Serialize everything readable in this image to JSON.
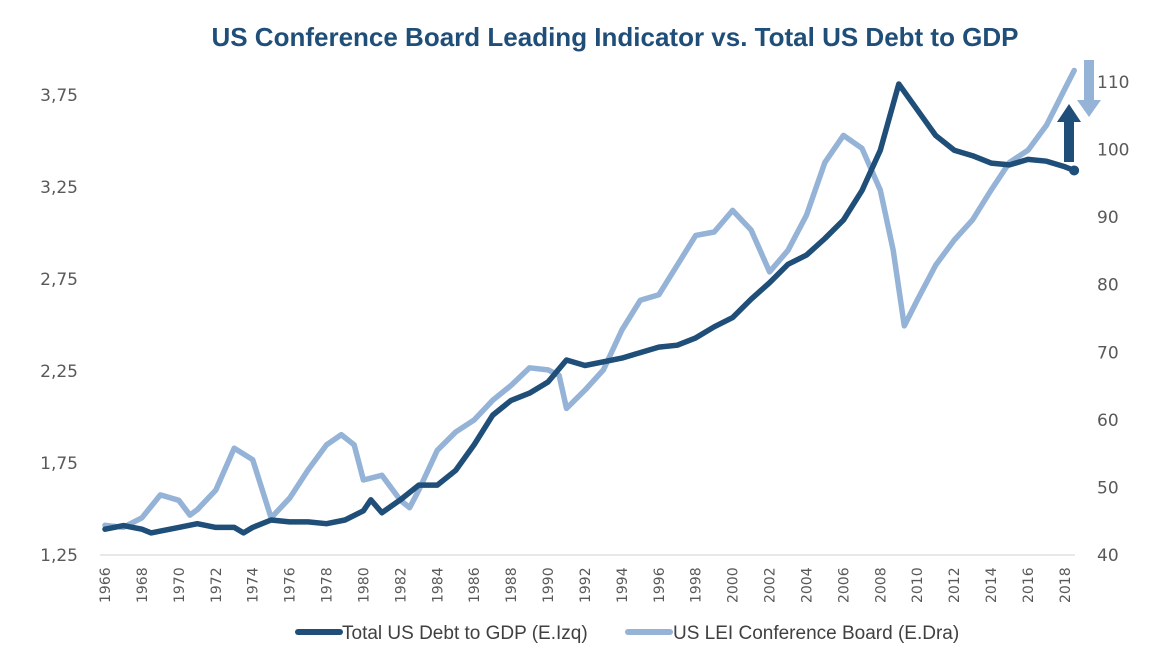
{
  "chart_data": {
    "type": "line",
    "title": "US Conference Board Leading Indicator vs. Total US Debt to GDP",
    "xlabel": "",
    "ylabel_left": "",
    "ylabel_right": "",
    "x_ticks": [
      "1966",
      "1968",
      "1970",
      "1972",
      "1974",
      "1976",
      "1978",
      "1980",
      "1982",
      "1984",
      "1986",
      "1988",
      "1990",
      "1992",
      "1994",
      "1996",
      "1998",
      "2000",
      "2002",
      "2004",
      "2006",
      "2008",
      "2010",
      "2012",
      "2014",
      "2016",
      "2018"
    ],
    "xlim": [
      1966,
      2019
    ],
    "ylim_left": [
      1.25,
      3.75
    ],
    "y_ticks_left": [
      "1,25",
      "1,75",
      "2,25",
      "2,75",
      "3,25",
      "3,75"
    ],
    "y_tick_values_left": [
      1.25,
      1.75,
      2.25,
      2.75,
      3.25,
      3.75
    ],
    "ylim_right": [
      40,
      110
    ],
    "y_ticks_right": [
      "40",
      "50",
      "60",
      "70",
      "80",
      "90",
      "100",
      "110"
    ],
    "y_tick_values_right": [
      40,
      50,
      60,
      70,
      80,
      90,
      100,
      110
    ],
    "grid": false,
    "legend_position": "bottom",
    "series": [
      {
        "name": "Total US Debt to GDP (E.Izq)",
        "axis": "left",
        "color": "#1f4e79",
        "end_marker": true,
        "x": [
          1966,
          1967,
          1968,
          1968.5,
          1969,
          1970,
          1971,
          1972,
          1973,
          1973.5,
          1974,
          1975,
          1976,
          1977,
          1978,
          1979,
          1980,
          1980.4,
          1981,
          1982,
          1983,
          1984,
          1985,
          1986,
          1987,
          1988,
          1989,
          1990,
          1991,
          1992,
          1993,
          1994,
          1995,
          1996,
          1997,
          1998,
          1999,
          2000,
          2001,
          2002,
          2003,
          2004,
          2005,
          2006,
          2007,
          2008,
          2009,
          2010,
          2011,
          2012,
          2013,
          2014,
          2015,
          2016,
          2017,
          2018,
          2018.5
        ],
        "values": [
          1.39,
          1.41,
          1.39,
          1.37,
          1.38,
          1.4,
          1.42,
          1.4,
          1.4,
          1.37,
          1.4,
          1.44,
          1.43,
          1.43,
          1.42,
          1.44,
          1.49,
          1.55,
          1.48,
          1.55,
          1.63,
          1.63,
          1.71,
          1.85,
          2.01,
          2.09,
          2.13,
          2.19,
          2.31,
          2.28,
          2.3,
          2.32,
          2.35,
          2.38,
          2.39,
          2.43,
          2.49,
          2.54,
          2.64,
          2.73,
          2.83,
          2.88,
          2.97,
          3.07,
          3.23,
          3.45,
          3.81,
          3.67,
          3.53,
          3.45,
          3.42,
          3.38,
          3.37,
          3.4,
          3.39,
          3.36,
          3.34
        ]
      },
      {
        "name": "US LEI Conference Board (E.Dra)",
        "axis": "right",
        "color": "#95b3d7",
        "end_marker": false,
        "x": [
          1966,
          1967,
          1968,
          1969,
          1970,
          1970.6,
          1971,
          1972,
          1973,
          1974,
          1975,
          1976,
          1977,
          1978,
          1978.8,
          1979.5,
          1980,
          1981,
          1982,
          1982.5,
          1983,
          1984,
          1985,
          1986,
          1987,
          1988,
          1989,
          1990,
          1990.6,
          1991,
          1992,
          1993,
          1994,
          1995,
          1996,
          1997,
          1998,
          1999,
          2000,
          2001,
          2002,
          2003,
          2004,
          2005,
          2006,
          2007,
          2008,
          2008.7,
          2009.3,
          2010,
          2011,
          2012,
          2013,
          2014,
          2015,
          2016,
          2017,
          2018,
          2018.5
        ],
        "values": [
          44.4,
          44.1,
          45.5,
          48.9,
          48.1,
          45.9,
          46.7,
          49.6,
          55.8,
          54.1,
          45.5,
          48.4,
          52.6,
          56.3,
          57.8,
          56.3,
          51.1,
          51.8,
          48.1,
          47.0,
          49.6,
          55.5,
          58.2,
          60.0,
          62.9,
          65.1,
          67.7,
          67.4,
          66.6,
          61.7,
          64.4,
          67.4,
          73.3,
          77.7,
          78.5,
          82.9,
          87.3,
          87.8,
          91.0,
          88.1,
          81.9,
          85.1,
          90.3,
          98.1,
          102.1,
          100.2,
          94.0,
          85.1,
          73.9,
          77.7,
          82.9,
          86.6,
          89.6,
          94.0,
          98.1,
          99.9,
          103.6,
          109.0,
          111.7
        ]
      }
    ],
    "annotations": [
      {
        "type": "arrow",
        "direction": "up",
        "color": "#1f4e79",
        "refers_to": "Total US Debt to GDP (E.Izq)"
      },
      {
        "type": "arrow",
        "direction": "down",
        "color": "#95b3d7",
        "refers_to": "US LEI Conference Board (E.Dra)"
      }
    ]
  }
}
